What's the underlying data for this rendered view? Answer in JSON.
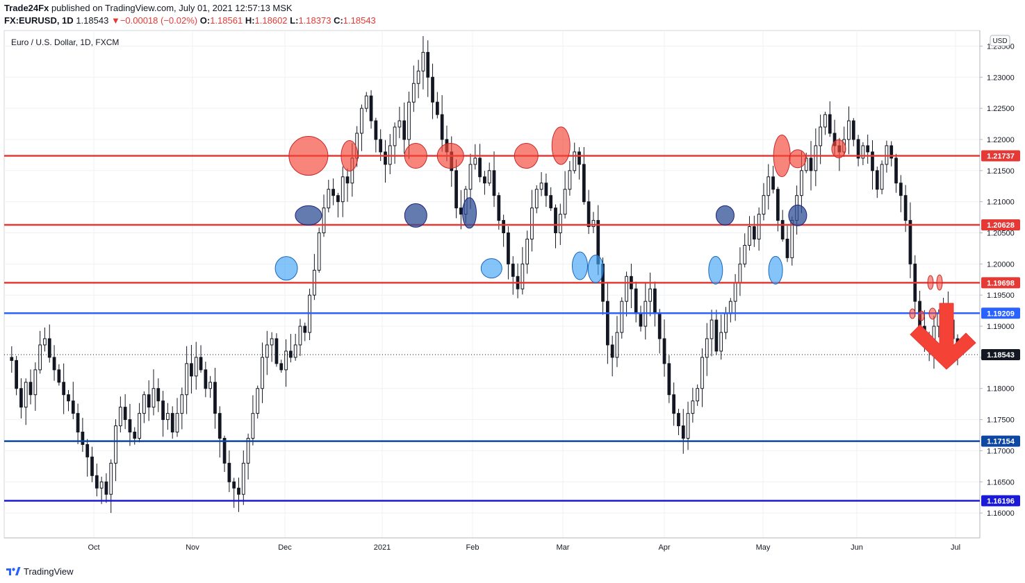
{
  "header": {
    "author": "Trade24Fx",
    "published_text": "published on TradingView.com, July 01, 2021 12:57:13 MSK",
    "symbol": "FX:EURUSD, 1D",
    "last": "1.18543",
    "change": "−0.00018 (−0.02%)",
    "o_label": "O:",
    "o": "1.18561",
    "h_label": "H:",
    "h": "1.18602",
    "l_label": "L:",
    "l": "1.18373",
    "c_label": "C:",
    "c": "1.18543"
  },
  "footer": {
    "brand": "TradingView"
  },
  "chart_data": {
    "type": "candlestick",
    "title": "Euro / U.S. Dollar, 1D, FXCM",
    "currency_badge": "USD",
    "ylim": [
      1.156,
      1.2375
    ],
    "y_ticks": [
      "1.16000",
      "1.16500",
      "1.17000",
      "1.17500",
      "1.18000",
      "1.18500",
      "1.19000",
      "1.19500",
      "1.20000",
      "1.20500",
      "1.21000",
      "1.21500",
      "1.22000",
      "1.22500",
      "1.23000",
      "1.23500"
    ],
    "x_labels": [
      "Oct",
      "Nov",
      "Dec",
      "2021",
      "Feb",
      "Mar",
      "Apr",
      "May",
      "Jun",
      "Jul"
    ],
    "grid": true,
    "levels": [
      {
        "price": 1.21737,
        "label": "1.21737",
        "color": "#e53935"
      },
      {
        "price": 1.20628,
        "label": "1.20628",
        "color": "#e53935"
      },
      {
        "price": 1.19698,
        "label": "1.19698",
        "color": "#e53935"
      },
      {
        "price": 1.19209,
        "label": "1.19209",
        "color": "#2962ff"
      },
      {
        "price": 1.17154,
        "label": "1.17154",
        "color": "#0d47a1"
      },
      {
        "price": 1.16196,
        "label": "1.16196",
        "color": "#1a1ad6"
      }
    ],
    "current_price": {
      "price": 1.18543,
      "label": "1.18543"
    },
    "ohlc_path": [
      1.185,
      1.1845,
      1.18,
      1.177,
      1.181,
      1.179,
      1.183,
      1.187,
      1.188,
      1.185,
      1.183,
      1.181,
      1.179,
      1.178,
      1.176,
      1.173,
      1.171,
      1.169,
      1.166,
      1.164,
      1.165,
      1.163,
      1.168,
      1.174,
      1.177,
      1.175,
      1.173,
      1.172,
      1.176,
      1.179,
      1.177,
      1.18,
      1.178,
      1.175,
      1.176,
      1.173,
      1.176,
      1.179,
      1.184,
      1.182,
      1.185,
      1.183,
      1.18,
      1.181,
      1.176,
      1.172,
      1.168,
      1.165,
      1.164,
      1.163,
      1.168,
      1.172,
      1.176,
      1.18,
      1.185,
      1.187,
      1.188,
      1.184,
      1.183,
      1.186,
      1.185,
      1.187,
      1.19,
      1.189,
      1.195,
      1.199,
      1.205,
      1.209,
      1.212,
      1.211,
      1.21,
      1.214,
      1.213,
      1.217,
      1.221,
      1.225,
      1.227,
      1.223,
      1.22,
      1.218,
      1.216,
      1.219,
      1.222,
      1.223,
      1.22,
      1.226,
      1.229,
      1.231,
      1.234,
      1.23,
      1.226,
      1.224,
      1.22,
      1.218,
      1.215,
      1.209,
      1.208,
      1.212,
      1.216,
      1.217,
      1.214,
      1.213,
      1.215,
      1.211,
      1.207,
      1.205,
      1.2,
      1.198,
      1.196,
      1.2,
      1.204,
      1.209,
      1.212,
      1.213,
      1.211,
      1.209,
      1.205,
      1.208,
      1.212,
      1.215,
      1.218,
      1.216,
      1.21,
      1.206,
      1.207,
      1.2,
      1.194,
      1.187,
      1.185,
      1.189,
      1.194,
      1.198,
      1.196,
      1.192,
      1.19,
      1.194,
      1.196,
      1.192,
      1.188,
      1.184,
      1.179,
      1.176,
      1.174,
      1.172,
      1.176,
      1.178,
      1.18,
      1.185,
      1.188,
      1.191,
      1.186,
      1.189,
      1.192,
      1.194,
      1.197,
      1.2,
      1.203,
      1.206,
      1.204,
      1.208,
      1.211,
      1.214,
      1.212,
      1.207,
      1.204,
      1.201,
      1.207,
      1.211,
      1.215,
      1.217,
      1.215,
      1.219,
      1.222,
      1.224,
      1.221,
      1.219,
      1.218,
      1.22,
      1.223,
      1.22,
      1.217,
      1.219,
      1.218,
      1.215,
      1.212,
      1.216,
      1.219,
      1.217,
      1.213,
      1.211,
      1.207,
      1.2,
      1.194,
      1.19,
      1.187,
      1.186,
      1.19,
      1.192,
      1.193,
      1.191,
      1.188,
      1.1854
    ],
    "annotations": {
      "ellipses": [
        {
          "date": "2020-12-08",
          "price": 1.21737,
          "rx": 28,
          "ry": 28,
          "color": "red"
        },
        {
          "date": "2020-12-21",
          "price": 1.21737,
          "rx": 12,
          "ry": 22,
          "color": "red"
        },
        {
          "date": "2021-01-11",
          "price": 1.21737,
          "rx": 16,
          "ry": 18,
          "color": "red"
        },
        {
          "date": "2021-01-22",
          "price": 1.21737,
          "rx": 19,
          "ry": 18,
          "color": "red"
        },
        {
          "date": "2021-02-15",
          "price": 1.21737,
          "rx": 17,
          "ry": 18,
          "color": "red"
        },
        {
          "date": "2021-02-26",
          "price": 1.219,
          "rx": 13,
          "ry": 27,
          "color": "red"
        },
        {
          "date": "2021-05-07",
          "price": 1.21737,
          "rx": 12,
          "ry": 30,
          "color": "red"
        },
        {
          "date": "2021-05-12",
          "price": 1.2169,
          "rx": 12,
          "ry": 13,
          "color": "red"
        },
        {
          "date": "2021-05-25",
          "price": 1.2185,
          "rx": 10,
          "ry": 13,
          "color": "red"
        },
        {
          "date": "2020-12-08",
          "price": 1.2078,
          "rx": 19,
          "ry": 14,
          "color": "navy"
        },
        {
          "date": "2021-01-11",
          "price": 1.2078,
          "rx": 16,
          "ry": 17,
          "color": "navy"
        },
        {
          "date": "2021-01-28",
          "price": 1.2082,
          "rx": 10,
          "ry": 22,
          "color": "navy"
        },
        {
          "date": "2021-04-19",
          "price": 1.2078,
          "rx": 13,
          "ry": 14,
          "color": "navy"
        },
        {
          "date": "2021-05-12",
          "price": 1.2078,
          "rx": 13,
          "ry": 15,
          "color": "navy"
        },
        {
          "date": "2020-12-01",
          "price": 1.1993,
          "rx": 16,
          "ry": 17,
          "color": "lightblue"
        },
        {
          "date": "2021-02-04",
          "price": 1.1993,
          "rx": 15,
          "ry": 14,
          "color": "lightblue"
        },
        {
          "date": "2021-03-04",
          "price": 1.1997,
          "rx": 11,
          "ry": 20,
          "color": "lightblue"
        },
        {
          "date": "2021-03-09",
          "price": 1.1992,
          "rx": 11,
          "ry": 20,
          "color": "lightblue"
        },
        {
          "date": "2021-04-16",
          "price": 1.199,
          "rx": 10,
          "ry": 20,
          "color": "lightblue"
        },
        {
          "date": "2021-05-05",
          "price": 1.199,
          "rx": 10,
          "ry": 20,
          "color": "lightblue"
        }
      ],
      "arrow": {
        "direction": "down",
        "color": "#f44336"
      }
    }
  }
}
